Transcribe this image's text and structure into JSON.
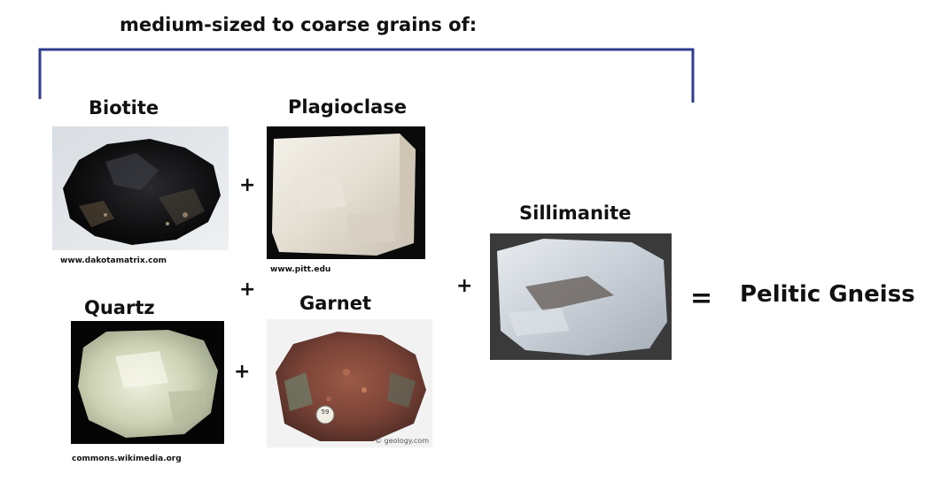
{
  "heading": "medium-sized to coarse grains of:",
  "minerals": {
    "biotite": {
      "name": "Biotite",
      "credit": "www.dakotamatrix.com",
      "icon": "biotite-rock-photo"
    },
    "plagioclase": {
      "name": "Plagioclase",
      "credit": "www.pitt.edu",
      "icon": "plagioclase-rock-photo"
    },
    "quartz": {
      "name": "Quartz",
      "credit": "commons.wikimedia.org",
      "icon": "quartz-rock-photo"
    },
    "garnet": {
      "name": "Garnet",
      "credit": "",
      "icon": "garnet-rock-photo",
      "watermark": "© geology.com",
      "sticker": "59"
    },
    "sillimanite": {
      "name": "Sillimanite",
      "credit": "",
      "icon": "sillimanite-rock-photo"
    }
  },
  "operators": {
    "plus": "+",
    "equals": "="
  },
  "result": "Pelitic Gneiss",
  "colors": {
    "bracket": "#2e3d8f",
    "text": "#111111"
  }
}
